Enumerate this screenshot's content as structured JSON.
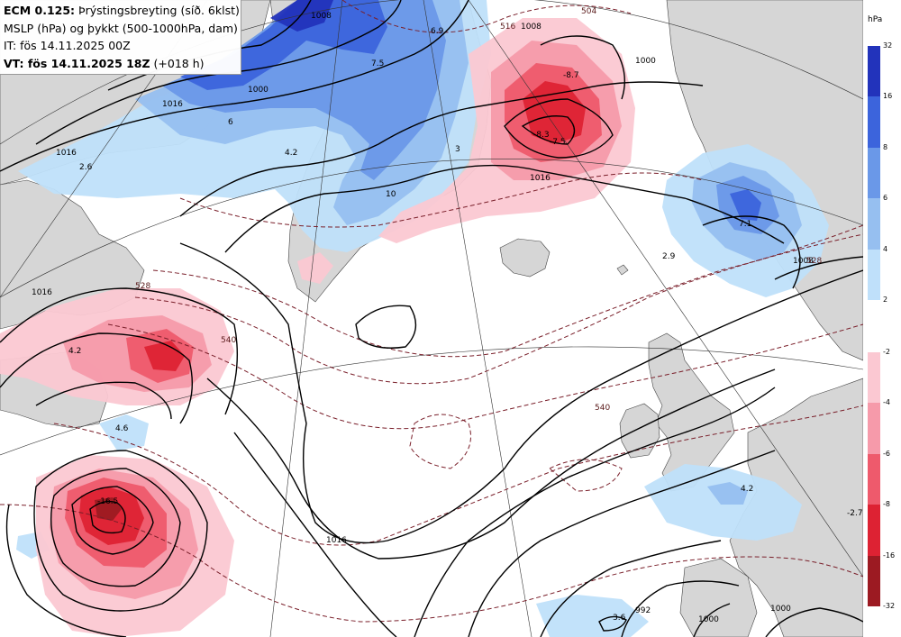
{
  "header": {
    "line1_bold": "ECM 0.125:",
    "line1_rest": " Þrýstingsbreyting (síð. 6klst)",
    "line2": "MSLP (hPa) og þykkt (500-1000hPa, dam)",
    "line3": "IT: fös 14.11.2025 00Z",
    "line4_bold": "VT: fös 14.11.2025 18Z",
    "line4_rest": " (+018 h)"
  },
  "legend": {
    "unit": "hPa",
    "rise_ticks": [
      "32",
      "16",
      "8",
      "6",
      "4",
      "2"
    ],
    "fall_ticks": [
      "-2",
      "-4",
      "-6",
      "-8",
      "-16",
      "-32"
    ],
    "rise_colors": [
      "#2233bb",
      "#3c64dc",
      "#6a98e8",
      "#96bff0",
      "#bfe0fa"
    ],
    "fall_colors": [
      "#fbc8d2",
      "#f69aaa",
      "#ee5a6c",
      "#dd2233",
      "#9c1a22"
    ]
  },
  "isobar_labels": [
    "1016",
    "1016",
    "1016",
    "1016",
    "1016",
    "1008",
    "1000",
    "1008",
    "1000",
    "992",
    "1000",
    "1000",
    "1008"
  ],
  "thickness_labels": [
    "516",
    "504",
    "540",
    "540",
    "528",
    "528"
  ],
  "change_labels": [
    "6.9",
    "7.5",
    "6",
    "4.2",
    "2.6",
    "-8.7",
    "-8.3",
    "-7.5",
    "3",
    "10",
    "7.1",
    "2.9",
    "4.2",
    "4.6",
    "-16.5",
    "4.2",
    "-2.7",
    "3.6"
  ],
  "colors": {
    "ocean": "#ffffff",
    "land": "#d6d6d6",
    "isobar": "#000000",
    "thickness": "#7a1f2a",
    "rise": "#3c64dc",
    "fall": "#dd2233"
  }
}
